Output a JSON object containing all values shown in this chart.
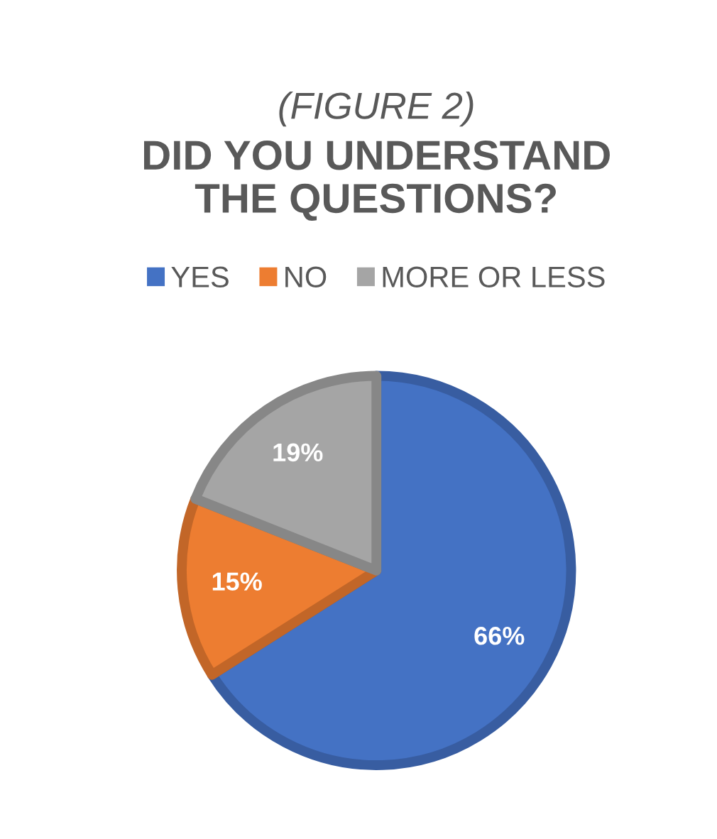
{
  "chart_data": {
    "type": "pie",
    "subtitle": "(FIGURE 2)",
    "title": "DID YOU UNDERSTAND\nTHE QUESTIONS?",
    "categories": [
      "YES",
      "NO",
      "MORE OR LESS"
    ],
    "values": [
      66,
      15,
      19
    ],
    "colors": [
      "#4472c4",
      "#ed7d31",
      "#a5a5a5"
    ],
    "value_labels": [
      "66%",
      "15%",
      "19%"
    ],
    "legend": "top"
  }
}
